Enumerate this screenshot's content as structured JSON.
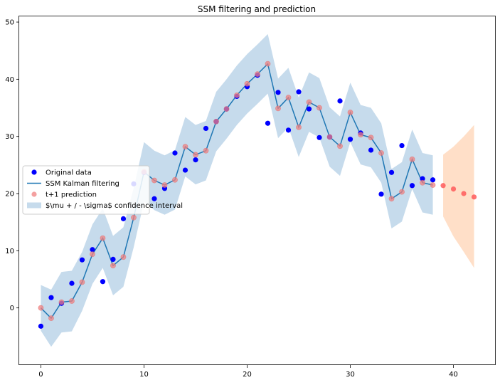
{
  "chart_data": {
    "type": "line",
    "title": "SSM filtering and prediction",
    "xlabel": "",
    "ylabel": "",
    "xlim": [
      -2.1,
      44.1
    ],
    "ylim": [
      -10,
      51
    ],
    "xticks": [
      0,
      10,
      20,
      30,
      40
    ],
    "yticks": [
      0,
      10,
      20,
      30,
      40,
      50
    ],
    "grid": false,
    "legend_position": "center-left",
    "colors": {
      "original": "#0000ff",
      "filter_line": "#1f77b4",
      "filter_band": "#c6dbec",
      "prediction": "#f08080",
      "prediction_edge": "#e06666",
      "forecast": "#ff5a5a",
      "forecast_band": "#ffdfc8"
    },
    "legend": [
      {
        "key": "original",
        "label": "Original data"
      },
      {
        "key": "filter",
        "label": "SSM Kalman filtering"
      },
      {
        "key": "prediction",
        "label": "t+1 prediction"
      },
      {
        "key": "band",
        "label": "$\\mu + / - \\sigma$ confidence interval"
      }
    ],
    "series": [
      {
        "name": "Original data",
        "kind": "scatter",
        "x": [
          0,
          1,
          2,
          3,
          4,
          5,
          6,
          7,
          8,
          9,
          10,
          11,
          12,
          13,
          14,
          15,
          16,
          17,
          18,
          19,
          20,
          21,
          22,
          23,
          24,
          25,
          26,
          27,
          28,
          29,
          30,
          31,
          32,
          33,
          34,
          35,
          36,
          37,
          38
        ],
        "y": [
          -3.2,
          1.8,
          0.8,
          4.3,
          8.4,
          10.2,
          4.6,
          8.5,
          15.6,
          21.7,
          23.7,
          19.1,
          20.9,
          27.1,
          24.1,
          25.9,
          31.4,
          32.6,
          34.8,
          37.0,
          38.7,
          40.7,
          32.3,
          37.7,
          31.1,
          37.8,
          34.8,
          29.8,
          29.9,
          36.2,
          29.5,
          30.6,
          27.6,
          19.9,
          23.7,
          28.4,
          21.4,
          22.6,
          22.4
        ]
      },
      {
        "name": "SSM Kalman filtering",
        "kind": "line",
        "x": [
          0,
          1,
          2,
          3,
          4,
          5,
          6,
          7,
          8,
          9,
          10,
          11,
          12,
          13,
          14,
          15,
          16,
          17,
          18,
          19,
          20,
          21,
          22,
          23,
          24,
          25,
          26,
          27,
          28,
          29,
          30,
          31,
          32,
          33,
          34,
          35,
          36,
          37,
          38
        ],
        "y": [
          0.0,
          -1.8,
          1.0,
          1.2,
          4.5,
          9.4,
          12.2,
          7.4,
          8.9,
          15.8,
          23.8,
          22.3,
          21.5,
          22.4,
          28.2,
          26.8,
          27.5,
          32.6,
          34.8,
          37.2,
          39.2,
          40.9,
          42.7,
          34.9,
          36.8,
          31.6,
          36.0,
          35.0,
          29.9,
          28.3,
          34.2,
          30.3,
          29.8,
          27.1,
          19.1,
          20.3,
          26.0,
          21.9,
          21.5
        ]
      },
      {
        "name": "t+1 prediction",
        "kind": "scatter",
        "x": [
          0,
          1,
          2,
          3,
          4,
          5,
          6,
          7,
          8,
          9,
          10,
          11,
          12,
          13,
          14,
          15,
          16,
          17,
          18,
          19,
          20,
          21,
          22,
          23,
          24,
          25,
          26,
          27,
          28,
          29,
          30,
          31,
          32,
          33,
          34,
          35,
          36,
          37,
          38
        ],
        "y": [
          0.0,
          -1.8,
          1.0,
          1.2,
          4.5,
          9.4,
          12.2,
          7.4,
          8.9,
          15.8,
          23.8,
          22.3,
          21.5,
          22.4,
          28.2,
          26.8,
          27.5,
          32.6,
          34.8,
          37.2,
          39.2,
          40.9,
          42.7,
          34.9,
          36.8,
          31.6,
          36.0,
          35.0,
          29.9,
          28.3,
          34.2,
          30.3,
          29.8,
          27.1,
          19.1,
          20.3,
          26.0,
          21.9,
          21.5
        ]
      },
      {
        "name": "confidence interval",
        "kind": "band",
        "x": [
          0,
          1,
          2,
          3,
          4,
          5,
          6,
          7,
          8,
          9,
          10,
          11,
          12,
          13,
          14,
          15,
          16,
          17,
          18,
          19,
          20,
          21,
          22,
          23,
          24,
          25,
          26,
          27,
          28,
          29,
          30,
          31,
          32,
          33,
          34,
          35,
          36,
          37,
          38
        ],
        "lower": [
          -4.0,
          -6.8,
          -4.3,
          -4.1,
          -0.5,
          4.2,
          7.0,
          2.2,
          3.7,
          10.6,
          18.6,
          17.1,
          16.3,
          17.2,
          23.0,
          21.6,
          22.3,
          27.4,
          29.6,
          32.0,
          34.0,
          35.7,
          37.5,
          29.7,
          31.6,
          26.4,
          30.8,
          29.8,
          24.7,
          23.1,
          29.0,
          25.1,
          24.6,
          21.9,
          13.9,
          15.1,
          20.8,
          16.7,
          16.3
        ],
        "upper": [
          4.0,
          3.2,
          6.3,
          6.5,
          9.8,
          14.6,
          17.4,
          12.6,
          14.1,
          21.0,
          29.0,
          27.5,
          26.7,
          27.6,
          33.4,
          32.0,
          32.7,
          37.8,
          40.0,
          42.4,
          44.4,
          46.1,
          47.9,
          40.1,
          42.0,
          36.8,
          41.2,
          40.2,
          35.1,
          33.5,
          39.4,
          35.5,
          35.0,
          32.3,
          24.3,
          25.5,
          31.2,
          27.1,
          26.7
        ]
      },
      {
        "name": "forecast",
        "kind": "scatter",
        "x": [
          39,
          40,
          41,
          42
        ],
        "y": [
          21.4,
          20.8,
          20.0,
          19.4
        ]
      },
      {
        "name": "forecast interval",
        "kind": "band",
        "x": [
          39,
          40,
          41,
          42
        ],
        "lower": [
          16.0,
          12.5,
          9.8,
          7.0
        ],
        "upper": [
          26.8,
          28.2,
          30.0,
          32.0
        ]
      }
    ]
  }
}
